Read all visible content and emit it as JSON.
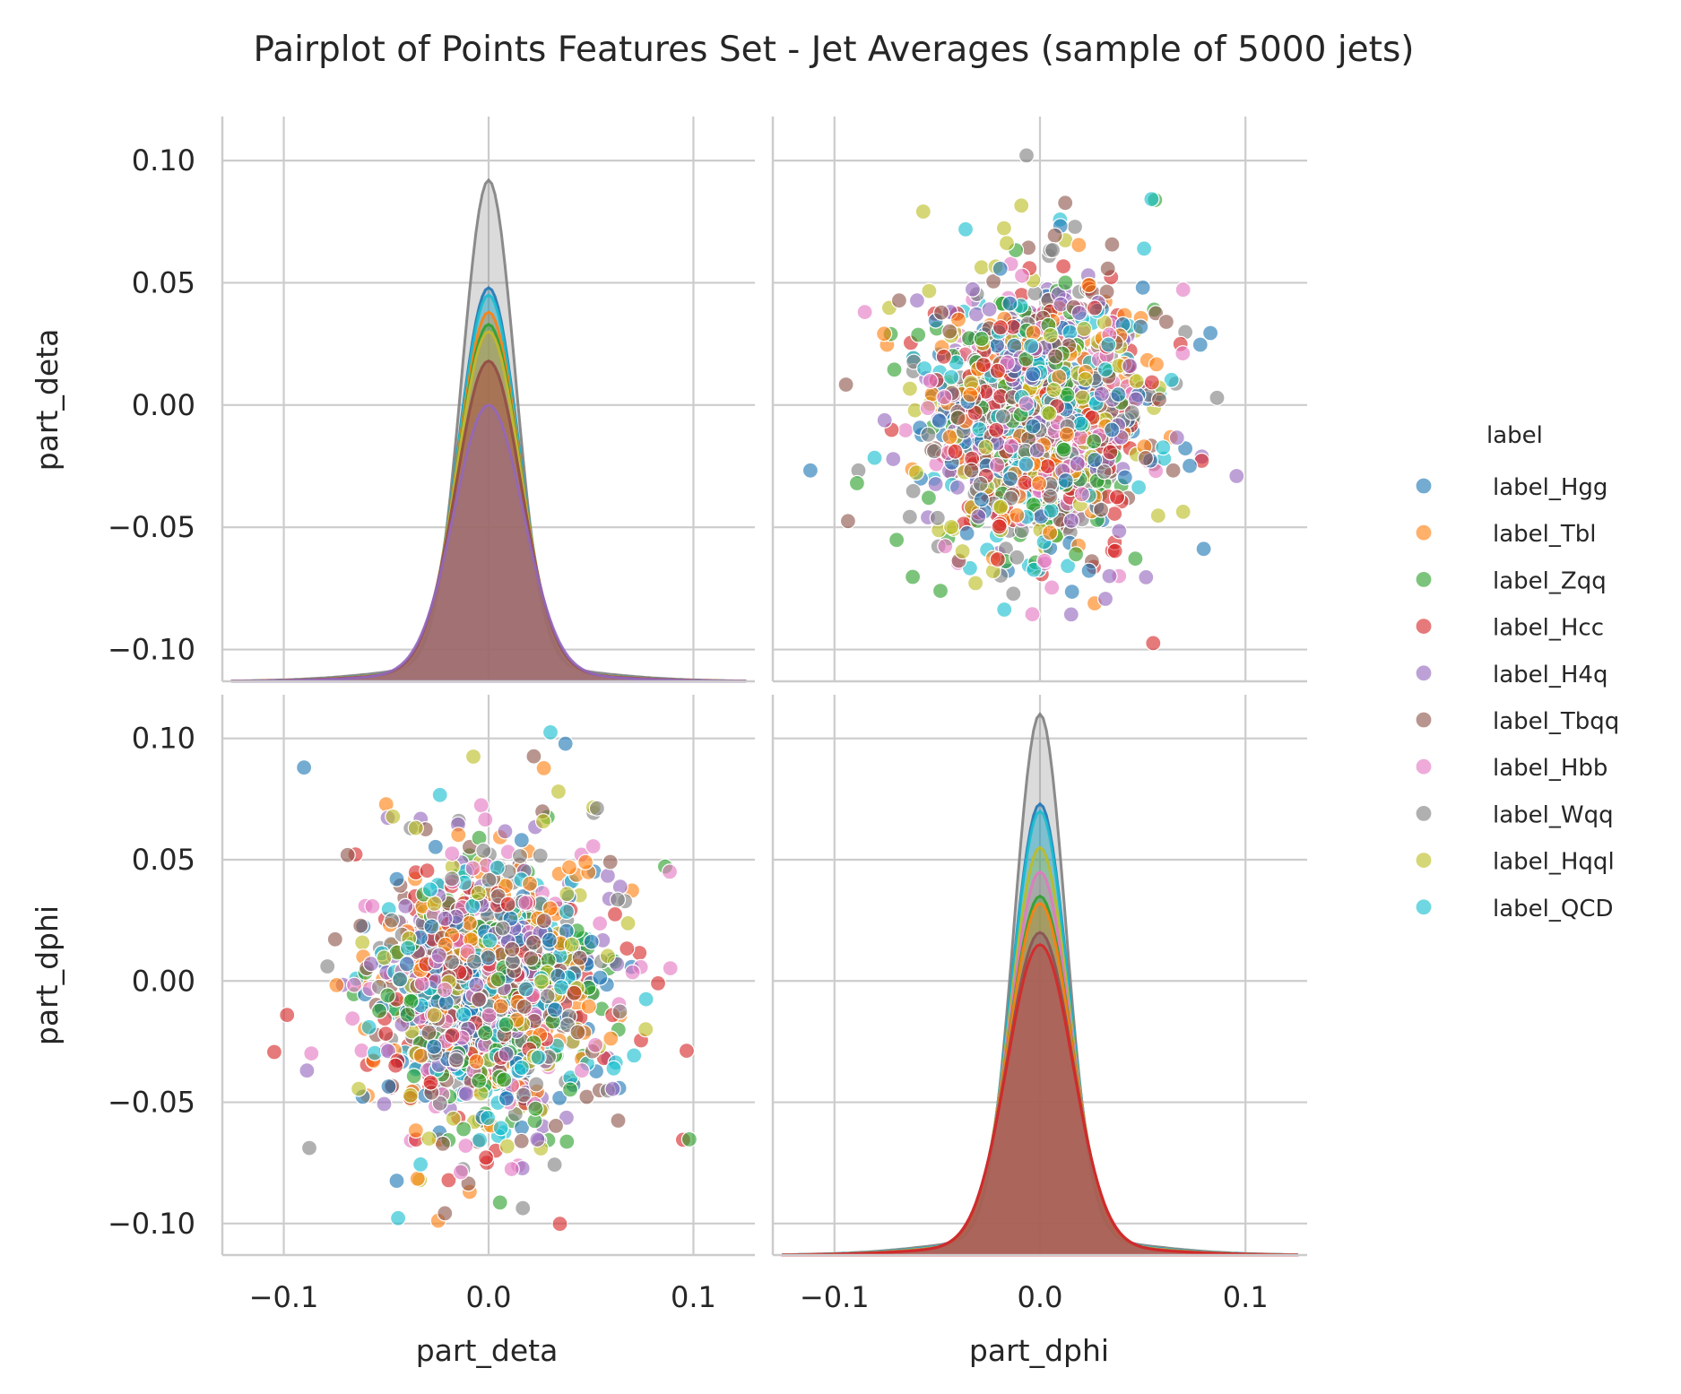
{
  "chart_data": {
    "type": "scatter",
    "title": "Pairplot of Points Features Set - Jet Averages (sample of 5000 jets)",
    "variables": [
      "part_deta",
      "part_dphi"
    ],
    "panels": [
      {
        "row": 0,
        "col": 0,
        "kind": "kde",
        "variable": "part_deta"
      },
      {
        "row": 0,
        "col": 1,
        "kind": "scatter",
        "x": "part_dphi",
        "y": "part_deta"
      },
      {
        "row": 1,
        "col": 0,
        "kind": "scatter",
        "x": "part_deta",
        "y": "part_dphi"
      },
      {
        "row": 1,
        "col": 1,
        "kind": "kde",
        "variable": "part_dphi"
      }
    ],
    "xlim": [
      -0.13,
      0.13
    ],
    "ylim": [
      -0.113,
      0.118
    ],
    "x_ticks": [
      -0.1,
      0.0,
      0.1
    ],
    "x_tick_labels": [
      "−0.1",
      "0.0",
      "0.1"
    ],
    "y_ticks": [
      0.1,
      0.05,
      0.0,
      -0.05,
      -0.1
    ],
    "y_tick_labels": [
      "0.10",
      "0.05",
      "0.00",
      "−0.05",
      "−0.10"
    ],
    "xlabels": [
      "part_deta",
      "part_dphi"
    ],
    "ylabels": [
      "part_deta",
      "part_dphi"
    ],
    "grid": true,
    "legend": {
      "title": "label",
      "placement": "right"
    },
    "series": [
      {
        "name": "label_Hgg",
        "color": "#1f77b4",
        "kde_peak_deta": 0.048,
        "kde_peak_dphi": 0.073
      },
      {
        "name": "label_Tbl",
        "color": "#ff7f0e",
        "kde_peak_deta": 0.038,
        "kde_peak_dphi": 0.032
      },
      {
        "name": "label_Zqq",
        "color": "#2ca02c",
        "kde_peak_deta": 0.033,
        "kde_peak_dphi": 0.035
      },
      {
        "name": "label_Hcc",
        "color": "#d62728",
        "kde_peak_deta": 0.018,
        "kde_peak_dphi": 0.015
      },
      {
        "name": "label_H4q",
        "color": "#9467bd",
        "kde_peak_deta": 0.0,
        "kde_peak_dphi": 0.02
      },
      {
        "name": "label_Tbqq",
        "color": "#8c564b",
        "kde_peak_deta": 0.018,
        "kde_peak_dphi": 0.02
      },
      {
        "name": "label_Hbb",
        "color": "#e377c2",
        "kde_peak_deta": 0.03,
        "kde_peak_dphi": 0.045
      },
      {
        "name": "label_Wqq",
        "color": "#7f7f7f",
        "kde_peak_deta": 0.092,
        "kde_peak_dphi": 0.11
      },
      {
        "name": "label_Hqql",
        "color": "#bcbd22",
        "kde_peak_deta": 0.03,
        "kde_peak_dphi": 0.055
      },
      {
        "name": "label_QCD",
        "color": "#17becf",
        "kde_peak_deta": 0.045,
        "kde_peak_dphi": 0.07
      }
    ]
  }
}
